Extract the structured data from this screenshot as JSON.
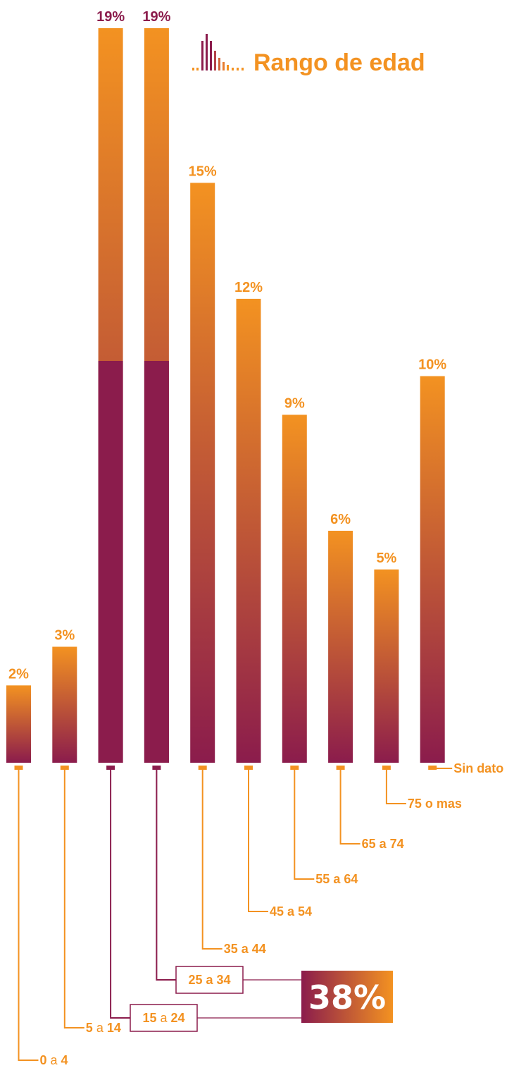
{
  "title": "Rango de edad",
  "colors": {
    "orange": "#f39221",
    "plum": "#8b1c4c"
  },
  "icon": "bar-chart-icon",
  "highlight": {
    "value": "38%",
    "categories": [
      "15 a 24",
      "25 a 34"
    ]
  },
  "chart_data": {
    "type": "bar",
    "title": "Rango de edad",
    "categories": [
      {
        "label": "0 a 4",
        "num_a": "0",
        "connector": "a",
        "num_b": "4"
      },
      {
        "label": "5 a 14",
        "num_a": "5",
        "connector": "a",
        "num_b": "14"
      },
      {
        "label": "15 a 24",
        "num_a": "15",
        "connector": "a",
        "num_b": "24"
      },
      {
        "label": "25 a 34",
        "num_a": "25 a 34",
        "connector": "",
        "num_b": ""
      },
      {
        "label": "35 a 44",
        "num_a": "35 a 44",
        "connector": "",
        "num_b": ""
      },
      {
        "label": "45 a 54",
        "num_a": "45 a 54",
        "connector": "",
        "num_b": ""
      },
      {
        "label": "55 a 64",
        "num_a": "55 a 64",
        "connector": "",
        "num_b": ""
      },
      {
        "label": "65 a 74",
        "num_a": "65 a 74",
        "connector": "",
        "num_b": ""
      },
      {
        "label": "75 o mas",
        "num_a": "75 o mas",
        "connector": "",
        "num_b": ""
      },
      {
        "label": "Sin dato",
        "num_a": "Sin dato",
        "connector": "",
        "num_b": ""
      }
    ],
    "values": [
      2,
      3,
      19,
      19,
      15,
      12,
      9,
      6,
      5,
      10
    ],
    "value_labels": [
      "2%",
      "3%",
      "19%",
      "19%",
      "15%",
      "12%",
      "9%",
      "6%",
      "5%",
      "10%"
    ],
    "highlighted": [
      false,
      false,
      true,
      true,
      false,
      false,
      false,
      false,
      false,
      false
    ],
    "unit": "%",
    "grid": false,
    "legend": "none"
  }
}
